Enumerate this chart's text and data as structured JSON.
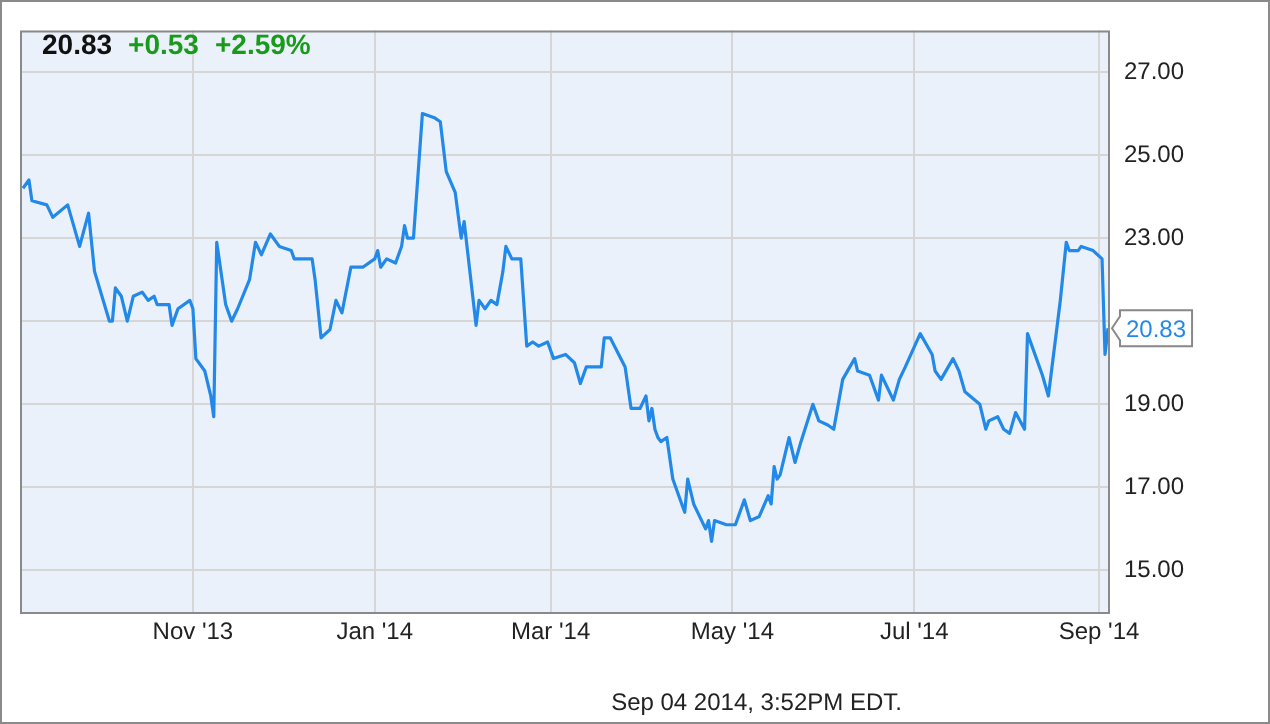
{
  "chart_data": {
    "type": "line",
    "title": "20.83 +0.53 +2.59%",
    "color": "#2389e8",
    "marker": "none",
    "line_style": "solid",
    "grid": true,
    "legend": false,
    "xlim": [
      "2013-09-04",
      "2014-09-04"
    ],
    "xticks": [
      {
        "value": "2013-11-01",
        "label": "Nov '13"
      },
      {
        "value": "2014-01-01",
        "label": "Jan '14"
      },
      {
        "value": "2014-03-01",
        "label": "Mar '14"
      },
      {
        "value": "2014-05-01",
        "label": "May '14"
      },
      {
        "value": "2014-07-01",
        "label": "Jul '14"
      },
      {
        "value": "2014-09-01",
        "label": "Sep '14"
      }
    ],
    "ylim": [
      14,
      28
    ],
    "yticks": [
      {
        "value": 15,
        "label": "15.00"
      },
      {
        "value": 17,
        "label": "17.00"
      },
      {
        "value": 19,
        "label": "19.00"
      },
      {
        "value": 21,
        "label": null
      },
      {
        "value": 23,
        "label": "23.00"
      },
      {
        "value": 25,
        "label": "25.00"
      },
      {
        "value": 27,
        "label": "27.00"
      }
    ],
    "x": [
      "2013-09-05",
      "2013-09-07",
      "2013-09-08",
      "2013-09-13",
      "2013-09-15",
      "2013-09-20",
      "2013-09-24",
      "2013-09-27",
      "2013-09-29",
      "2013-10-04",
      "2013-10-05",
      "2013-10-06",
      "2013-10-08",
      "2013-10-10",
      "2013-10-12",
      "2013-10-15",
      "2013-10-17",
      "2013-10-19",
      "2013-10-20",
      "2013-10-24",
      "2013-10-25",
      "2013-10-27",
      "2013-10-31",
      "2013-11-01",
      "2013-11-02",
      "2013-11-05",
      "2013-11-07",
      "2013-11-08",
      "2013-11-09",
      "2013-11-12",
      "2013-11-13",
      "2013-11-14",
      "2013-11-16",
      "2013-11-20",
      "2013-11-22",
      "2013-11-24",
      "2013-11-27",
      "2013-11-30",
      "2013-12-04",
      "2013-12-05",
      "2013-12-11",
      "2013-12-12",
      "2013-12-14",
      "2013-12-17",
      "2013-12-19",
      "2013-12-21",
      "2013-12-24",
      "2013-12-28",
      "2014-01-01",
      "2014-01-02",
      "2014-01-03",
      "2014-01-05",
      "2014-01-08",
      "2014-01-10",
      "2014-01-11",
      "2014-01-12",
      "2014-01-14",
      "2014-01-17",
      "2014-01-21",
      "2014-01-23",
      "2014-01-25",
      "2014-01-28",
      "2014-01-30",
      "2014-01-31",
      "2014-02-04",
      "2014-02-05",
      "2014-02-07",
      "2014-02-09",
      "2014-02-11",
      "2014-02-13",
      "2014-02-14",
      "2014-02-16",
      "2014-02-19",
      "2014-02-21",
      "2014-02-23",
      "2014-02-25",
      "2014-02-28",
      "2014-03-02",
      "2014-03-06",
      "2014-03-09",
      "2014-03-11",
      "2014-03-13",
      "2014-03-15",
      "2014-03-18",
      "2014-03-19",
      "2014-03-21",
      "2014-03-26",
      "2014-03-28",
      "2014-03-31",
      "2014-04-02",
      "2014-04-03",
      "2014-04-04",
      "2014-04-05",
      "2014-04-06",
      "2014-04-07",
      "2014-04-09",
      "2014-04-11",
      "2014-04-15",
      "2014-04-16",
      "2014-04-18",
      "2014-04-22",
      "2014-04-23",
      "2014-04-24",
      "2014-04-25",
      "2014-04-29",
      "2014-05-02",
      "2014-05-05",
      "2014-05-07",
      "2014-05-10",
      "2014-05-13",
      "2014-05-14",
      "2014-05-15",
      "2014-05-16",
      "2014-05-17",
      "2014-05-20",
      "2014-05-22",
      "2014-05-24",
      "2014-05-28",
      "2014-05-30",
      "2014-06-02",
      "2014-06-04",
      "2014-06-07",
      "2014-06-11",
      "2014-06-12",
      "2014-06-16",
      "2014-06-19",
      "2014-06-20",
      "2014-06-24",
      "2014-06-26",
      "2014-06-28",
      "2014-07-03",
      "2014-07-07",
      "2014-07-08",
      "2014-07-10",
      "2014-07-14",
      "2014-07-16",
      "2014-07-18",
      "2014-07-23",
      "2014-07-25",
      "2014-07-26",
      "2014-07-29",
      "2014-07-31",
      "2014-08-02",
      "2014-08-04",
      "2014-08-07",
      "2014-08-08",
      "2014-08-11",
      "2014-08-13",
      "2014-08-15",
      "2014-08-19",
      "2014-08-21",
      "2014-08-22",
      "2014-08-25",
      "2014-08-26",
      "2014-08-30",
      "2014-09-02",
      "2014-09-03",
      "2014-09-04"
    ],
    "values": [
      24.2,
      24.4,
      23.9,
      23.8,
      23.5,
      23.8,
      22.8,
      23.6,
      22.2,
      21.0,
      21.0,
      21.8,
      21.6,
      21.0,
      21.6,
      21.7,
      21.5,
      21.6,
      21.4,
      21.4,
      20.9,
      21.3,
      21.5,
      21.3,
      20.1,
      19.8,
      19.2,
      18.7,
      22.9,
      21.4,
      21.2,
      21.0,
      21.3,
      22.0,
      22.9,
      22.6,
      23.1,
      22.8,
      22.7,
      22.5,
      22.5,
      22.0,
      20.6,
      20.8,
      21.5,
      21.2,
      22.3,
      22.3,
      22.5,
      22.7,
      22.3,
      22.5,
      22.4,
      22.8,
      23.3,
      23.0,
      23.0,
      26.0,
      25.9,
      25.8,
      24.6,
      24.1,
      23.0,
      23.4,
      20.9,
      21.5,
      21.3,
      21.5,
      21.4,
      22.2,
      22.8,
      22.5,
      22.5,
      20.4,
      20.5,
      20.4,
      20.5,
      20.1,
      20.2,
      20.0,
      19.5,
      19.9,
      19.9,
      19.9,
      20.6,
      20.6,
      19.9,
      18.9,
      18.9,
      19.2,
      18.6,
      18.9,
      18.4,
      18.2,
      18.1,
      18.2,
      17.2,
      16.4,
      17.2,
      16.6,
      16.0,
      16.2,
      15.7,
      16.2,
      16.1,
      16.1,
      16.7,
      16.2,
      16.3,
      16.8,
      16.6,
      17.5,
      17.2,
      17.3,
      18.2,
      17.6,
      18.1,
      19.0,
      18.6,
      18.5,
      18.4,
      19.6,
      20.1,
      19.8,
      19.7,
      19.1,
      19.7,
      19.1,
      19.6,
      19.9,
      20.7,
      20.2,
      19.8,
      19.6,
      20.1,
      19.8,
      19.3,
      19.0,
      18.4,
      18.6,
      18.7,
      18.4,
      18.3,
      18.8,
      18.4,
      20.7,
      20.1,
      19.7,
      19.2,
      21.5,
      22.9,
      22.7,
      22.7,
      22.8,
      22.7,
      22.5,
      20.2,
      20.83
    ],
    "annotations": [
      {
        "text": "20.83",
        "x": "2014-09-04",
        "y": 20.83
      },
      "Sep 04 2014, 3:52PM EDT."
    ]
  }
}
